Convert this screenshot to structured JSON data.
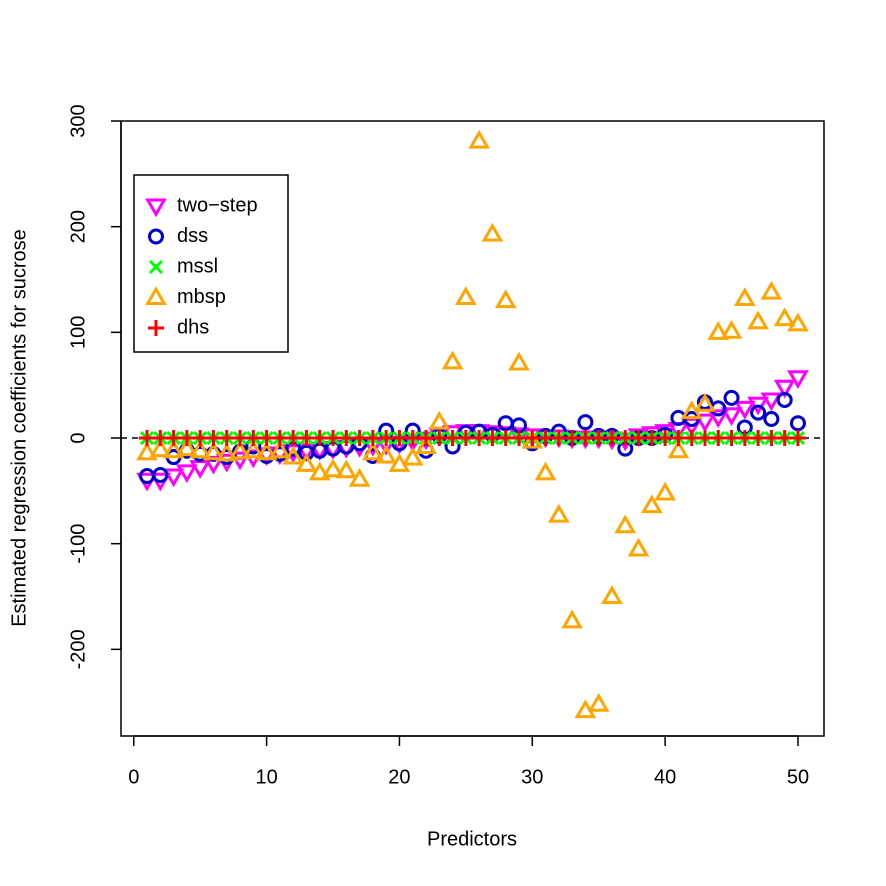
{
  "chart_data": {
    "type": "scatter",
    "xlabel": "Predictors",
    "ylabel": "Estimated regression coefficients for sucrose",
    "x": [
      1,
      2,
      3,
      4,
      5,
      6,
      7,
      8,
      9,
      10,
      11,
      12,
      13,
      14,
      15,
      16,
      17,
      18,
      19,
      20,
      21,
      22,
      23,
      24,
      25,
      26,
      27,
      28,
      29,
      30,
      31,
      32,
      33,
      34,
      35,
      36,
      37,
      38,
      39,
      40,
      41,
      42,
      43,
      44,
      45,
      46,
      47,
      48,
      49,
      50
    ],
    "xlim": [
      -0.96,
      51.96
    ],
    "xticks": [
      0,
      10,
      20,
      30,
      40,
      50
    ],
    "ylim": [
      -282,
      300
    ],
    "yticks": [
      -200,
      -100,
      0,
      100,
      200,
      300
    ],
    "reference_line": 0,
    "legend": "top-left",
    "series": [
      {
        "name": "two−step",
        "color": "#ff00ff",
        "marker": "triangle-down",
        "values": [
          -40,
          -40,
          -36,
          -32,
          -28,
          -24,
          -22,
          -20,
          -18,
          -16,
          -15,
          -13,
          -12,
          -11,
          -10,
          -9,
          -8,
          -7,
          -6,
          -5,
          -3,
          -1,
          3,
          5,
          6,
          6,
          5,
          4,
          3,
          2,
          1,
          1,
          0,
          0,
          0,
          -1,
          -2,
          2,
          4,
          6,
          8,
          12,
          16,
          20,
          22,
          28,
          32,
          36,
          48,
          57
        ]
      },
      {
        "name": "dss",
        "color": "#0000cd",
        "marker": "circle",
        "values": [
          -36,
          -35,
          -18,
          -12,
          -15,
          -15,
          -18,
          -13,
          -8,
          -17,
          -15,
          -10,
          -14,
          -12,
          -10,
          -8,
          -5,
          -17,
          7,
          -5,
          7,
          -12,
          2,
          -8,
          5,
          6,
          3,
          14,
          12,
          -5,
          2,
          6,
          0,
          15,
          2,
          2,
          -10,
          0,
          0,
          3,
          19,
          18,
          34,
          28,
          38,
          10,
          24,
          18,
          36,
          14
        ]
      },
      {
        "name": "mssl",
        "color": "#00ff00",
        "marker": "cross",
        "values": [
          0,
          0,
          0,
          0,
          0,
          0,
          0,
          0,
          0,
          0,
          0,
          0,
          0,
          0,
          0,
          0,
          0,
          0,
          0,
          0,
          0,
          0,
          0,
          0,
          0,
          0,
          0,
          0,
          0,
          0,
          0,
          0,
          0,
          0,
          0,
          0,
          0,
          0,
          0,
          0,
          0,
          0,
          0,
          0,
          0,
          0,
          0,
          0,
          0,
          0
        ]
      },
      {
        "name": "mbsp",
        "color": "#ffa500",
        "marker": "triangle-up",
        "values": [
          -14,
          -11,
          -12,
          -10,
          -12,
          -14,
          -15,
          -13,
          -12,
          -14,
          -12,
          -18,
          -25,
          -33,
          -30,
          -31,
          -39,
          -14,
          -17,
          -25,
          -19,
          -8,
          15,
          72,
          133,
          281,
          193,
          130,
          71,
          -3,
          -33,
          -73,
          -173,
          -258,
          -252,
          -150,
          -83,
          -105,
          -64,
          -52,
          -12,
          25,
          32,
          100,
          101,
          132,
          110,
          138,
          113,
          108
        ]
      },
      {
        "name": "dhs",
        "color": "#ff0000",
        "marker": "plus",
        "values": [
          0,
          0,
          0,
          0,
          0,
          0,
          0,
          0,
          0,
          0,
          0,
          0,
          0,
          0,
          0,
          0,
          0,
          0,
          0,
          0,
          0,
          0,
          0,
          0,
          0,
          0,
          0,
          0,
          0,
          0,
          0,
          0,
          0,
          0,
          0,
          0,
          0,
          0,
          0,
          0,
          0,
          0,
          0,
          0,
          0,
          0,
          0,
          0,
          0,
          0
        ]
      }
    ]
  }
}
